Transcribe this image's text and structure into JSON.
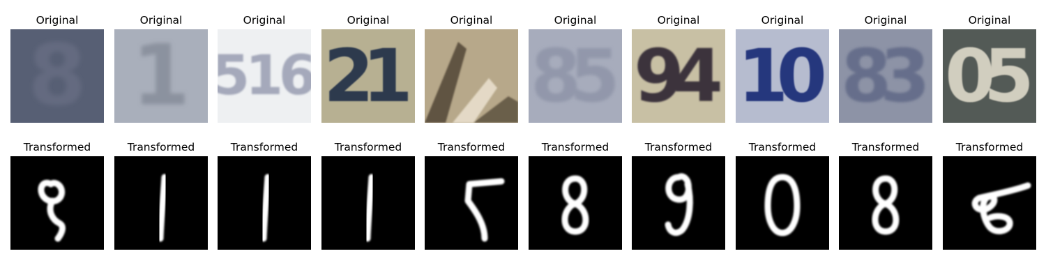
{
  "figure": {
    "rows": [
      {
        "row": "original",
        "panels": [
          {
            "title": "Original",
            "digit": "8",
            "scene": {
              "bg": "#575f74",
              "fg": "#7b7f94",
              "contrast": 0.35,
              "blur": 3.2
            }
          },
          {
            "title": "Original",
            "digit": "1",
            "scene": {
              "bg": "#a9afbb",
              "fg": "#747a87",
              "contrast": 0.55,
              "blur": 3.0
            }
          },
          {
            "title": "Original",
            "digit": "516",
            "scene": {
              "bg": "#eef0f2",
              "fg": "#8c92a8",
              "contrast": 0.75,
              "blur": 1.3
            }
          },
          {
            "title": "Original",
            "digit": "21",
            "scene": {
              "bg": "#b7b092",
              "fg": "#1c2f48",
              "contrast": 0.9,
              "blur": 0.9
            }
          },
          {
            "title": "Original",
            "digit": "",
            "scene": {
              "bg": "#b7a88a",
              "fg": "#4a4030",
              "contrast": 0.85,
              "blur": 1.1
            }
          },
          {
            "title": "Original",
            "digit": "85",
            "scene": {
              "bg": "#a7acbc",
              "fg": "#7e849a",
              "contrast": 0.5,
              "blur": 2.2
            }
          },
          {
            "title": "Original",
            "digit": "94",
            "scene": {
              "bg": "#c8c0a4",
              "fg": "#2c2432",
              "contrast": 0.9,
              "blur": 1.0
            }
          },
          {
            "title": "Original",
            "digit": "10",
            "scene": {
              "bg": "#b6bccf",
              "fg": "#20307a",
              "contrast": 0.95,
              "blur": 0.9
            }
          },
          {
            "title": "Original",
            "digit": "83",
            "scene": {
              "bg": "#8d93a6",
              "fg": "#4d5678",
              "contrast": 0.6,
              "blur": 1.8
            }
          },
          {
            "title": "Original",
            "digit": "05",
            "scene": {
              "bg": "#535a56",
              "fg": "#d8d4c4",
              "contrast": 0.95,
              "blur": 0.9
            }
          }
        ]
      },
      {
        "row": "transformed",
        "panels": [
          {
            "title": "Transformed",
            "digit": "2"
          },
          {
            "title": "Transformed",
            "digit": "1"
          },
          {
            "title": "Transformed",
            "digit": "1"
          },
          {
            "title": "Transformed",
            "digit": "1"
          },
          {
            "title": "Transformed",
            "digit": "5"
          },
          {
            "title": "Transformed",
            "digit": "8"
          },
          {
            "title": "Transformed",
            "digit": "9"
          },
          {
            "title": "Transformed",
            "digit": "0"
          },
          {
            "title": "Transformed",
            "digit": "8"
          },
          {
            "title": "Transformed",
            "digit": "6"
          }
        ]
      }
    ]
  }
}
